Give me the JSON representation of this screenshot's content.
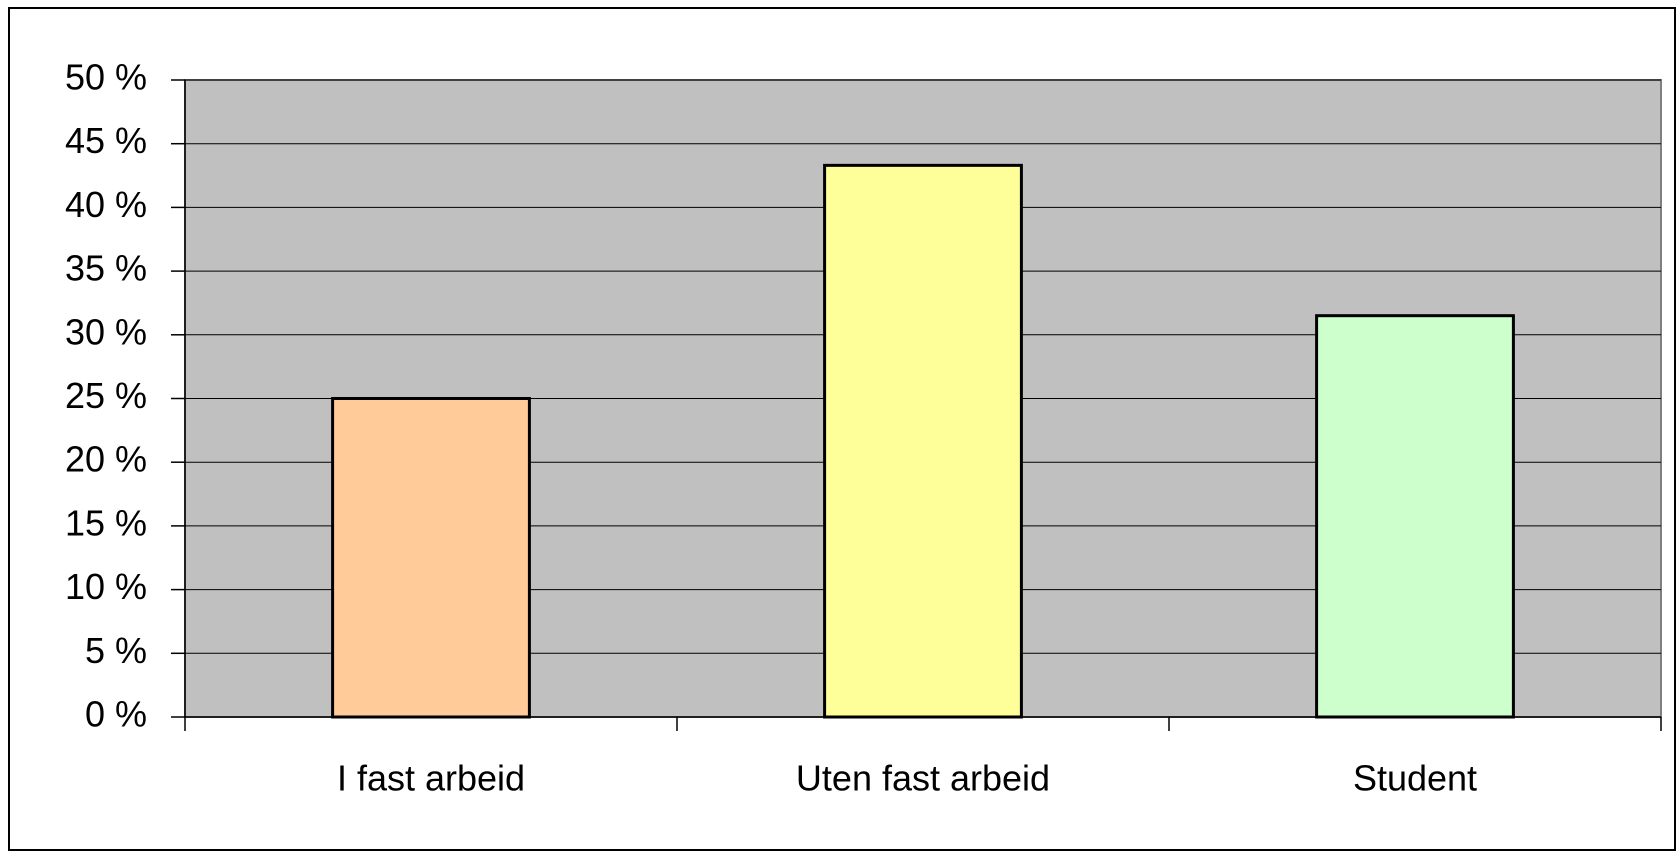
{
  "chart_data": {
    "type": "bar",
    "categories": [
      "I fast arbeid",
      "Uten fast arbeid",
      "Student"
    ],
    "values": [
      25,
      43.3,
      31.5
    ],
    "colors": [
      "#FFCC99",
      "#FFFF99",
      "#CCFFCC"
    ],
    "ylim": [
      0,
      50
    ],
    "yticks": [
      {
        "value": 0,
        "label": "0 %"
      },
      {
        "value": 5,
        "label": "5 %"
      },
      {
        "value": 10,
        "label": "10 %"
      },
      {
        "value": 15,
        "label": "15 %"
      },
      {
        "value": 20,
        "label": "20 %"
      },
      {
        "value": 25,
        "label": "25 %"
      },
      {
        "value": 30,
        "label": "30 %"
      },
      {
        "value": 35,
        "label": "35 %"
      },
      {
        "value": 40,
        "label": "40 %"
      },
      {
        "value": 45,
        "label": "45 %"
      },
      {
        "value": 50,
        "label": "50 %"
      }
    ],
    "grid": true,
    "plot_background": "#C0C0C0"
  }
}
